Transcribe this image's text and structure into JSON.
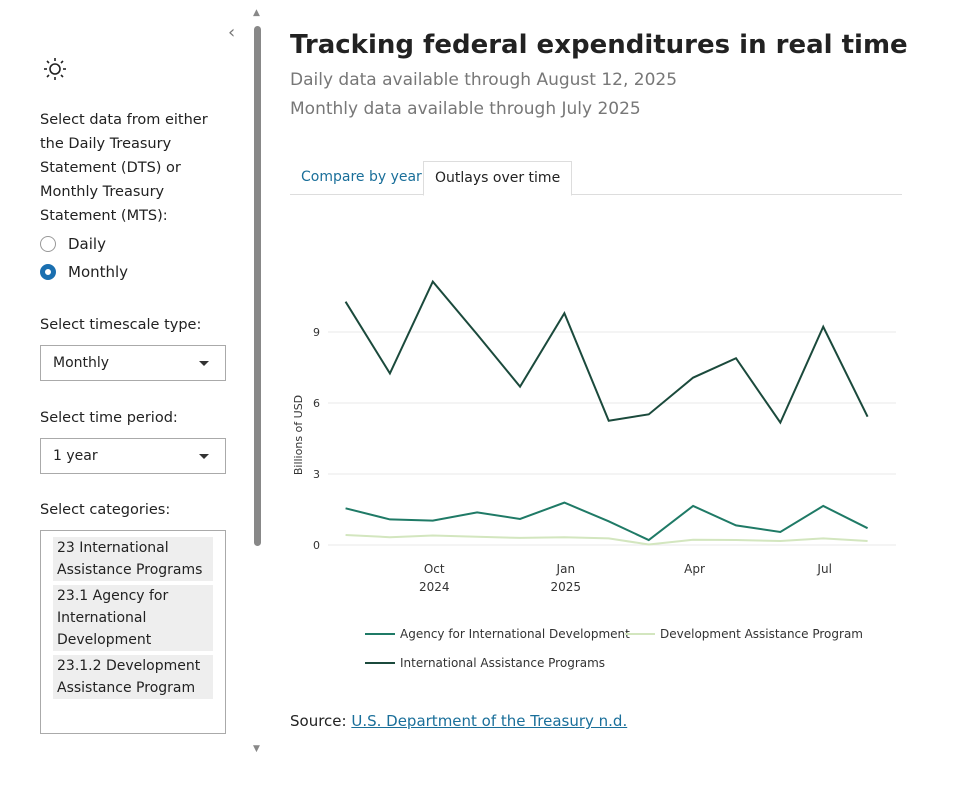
{
  "sidebar": {
    "collapse_icon": "chevron-left-icon",
    "theme_icon": "sun-icon",
    "source_label": "Select data from either the Daily Treasury Statement (DTS) or Monthly Treasury Statement (MTS):",
    "radios": [
      {
        "label": "Daily",
        "checked": false
      },
      {
        "label": "Monthly",
        "checked": true
      }
    ],
    "timescale_label": "Select timescale type:",
    "timescale_value": "Monthly",
    "period_label": "Select time period:",
    "period_value": "1 year",
    "categories_label": "Select categories:",
    "categories": [
      "23 International Assistance Programs",
      "23.1 Agency for International Development",
      "23.1.2 Development Assistance Program"
    ]
  },
  "header": {
    "title": "Tracking federal expenditures in real time",
    "daily_note": "Daily data available through August 12, 2025",
    "monthly_note": "Monthly data available through July 2025"
  },
  "tabs": [
    {
      "label": "Compare by year",
      "active": false
    },
    {
      "label": "Outlays over time",
      "active": true
    }
  ],
  "source": {
    "prefix": "Source: ",
    "link": "U.S. Department of the Treasury n.d."
  },
  "chart_data": {
    "type": "line",
    "title": "",
    "xlabel": "",
    "ylabel": "Billions of USD",
    "x": [
      "2024-07-31",
      "2024-08-31",
      "2024-09-30",
      "2024-10-31",
      "2024-11-30",
      "2024-12-31",
      "2025-01-31",
      "2025-02-28",
      "2025-03-31",
      "2025-04-30",
      "2025-05-31",
      "2025-06-30",
      "2025-07-31"
    ],
    "xticks": [
      {
        "date": "2024-10-01",
        "label": "Oct",
        "sublabel": "2024"
      },
      {
        "date": "2025-01-01",
        "label": "Jan",
        "sublabel": "2025"
      },
      {
        "date": "2025-04-01",
        "label": "Apr",
        "sublabel": ""
      },
      {
        "date": "2025-07-01",
        "label": "Jul",
        "sublabel": ""
      }
    ],
    "yticks": [
      0,
      3,
      6,
      9
    ],
    "ylim": [
      -0.4,
      11.5
    ],
    "grid": true,
    "legend_placement": "bottom",
    "series": [
      {
        "name": "Agency for International Development",
        "color": "#1f7a66",
        "values": [
          1.55,
          1.08,
          1.03,
          1.38,
          1.1,
          1.79,
          1.0,
          0.21,
          1.65,
          0.83,
          0.55,
          1.65,
          0.71
        ]
      },
      {
        "name": "Development Assistance Program",
        "color": "#d3e6bf",
        "values": [
          0.42,
          0.33,
          0.4,
          0.35,
          0.3,
          0.33,
          0.28,
          0.02,
          0.22,
          0.21,
          0.17,
          0.28,
          0.17
        ]
      },
      {
        "name": "International Assistance Programs",
        "color": "#1b4a3c",
        "values": [
          10.28,
          7.25,
          11.13,
          8.9,
          6.69,
          9.79,
          5.25,
          5.52,
          7.07,
          7.89,
          5.17,
          9.22,
          5.42
        ]
      }
    ]
  }
}
